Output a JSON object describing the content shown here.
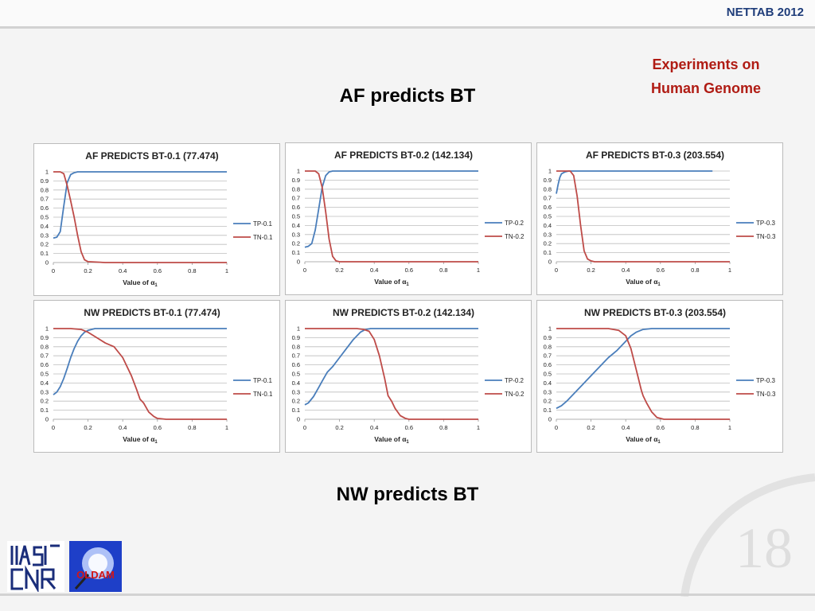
{
  "header": {
    "conference": "NETTAB 2012"
  },
  "subtitle": {
    "line1": "Experiments on",
    "line2": "Human Genome"
  },
  "headings": {
    "af": "AF predicts BT",
    "nw": "NW predicts BT"
  },
  "page_number": "18",
  "logos": {
    "iasi": "IASI CNR",
    "oldam": "OLDAM"
  },
  "colors": {
    "tp": "#4a7ebb",
    "tn": "#be4b48",
    "title": "#b01c14",
    "header": "#1f3d7a"
  },
  "chart_data": [
    {
      "type": "line",
      "title": "AF PREDICTS BT-0.1 (77.474)",
      "xlabel": "Value of α1",
      "ylim": [
        0,
        1
      ],
      "xlim": [
        0,
        1
      ],
      "x_ticks": [
        "0",
        "0.2",
        "0.4",
        "0.6",
        "0.8",
        "1"
      ],
      "y_ticks": [
        "0",
        "0.1",
        "0.2",
        "0.3",
        "0.4",
        "0.5",
        "0.6",
        "0.7",
        "0.8",
        "0.9",
        "1"
      ],
      "legend": "right",
      "grid": true,
      "series": [
        {
          "name": "TP-0.1",
          "x": [
            0,
            0.02,
            0.04,
            0.06,
            0.08,
            0.1,
            0.12,
            0.14,
            0.2,
            0.4,
            0.6,
            0.8,
            1.0
          ],
          "y": [
            0.27,
            0.28,
            0.34,
            0.62,
            0.88,
            0.97,
            0.99,
            1,
            1,
            1,
            1,
            1,
            1
          ]
        },
        {
          "name": "TN-0.1",
          "x": [
            0,
            0.04,
            0.06,
            0.08,
            0.1,
            0.12,
            0.14,
            0.16,
            0.18,
            0.2,
            0.3,
            0.4,
            0.6,
            0.8,
            1.0
          ],
          "y": [
            1,
            1,
            0.98,
            0.85,
            0.68,
            0.5,
            0.3,
            0.12,
            0.03,
            0.01,
            0,
            0,
            0,
            0,
            0
          ]
        }
      ]
    },
    {
      "type": "line",
      "title": "AF PREDICTS BT-0.2 (142.134)",
      "xlabel": "Value of α1",
      "ylim": [
        0,
        1
      ],
      "xlim": [
        0,
        1
      ],
      "x_ticks": [
        "0",
        "0.2",
        "0.4",
        "0.6",
        "0.8",
        "1"
      ],
      "y_ticks": [
        "0",
        "0.1",
        "0.2",
        "0.3",
        "0.4",
        "0.5",
        "0.6",
        "0.7",
        "0.8",
        "0.9",
        "1"
      ],
      "legend": "right",
      "grid": true,
      "series": [
        {
          "name": "TP-0.2",
          "x": [
            0,
            0.02,
            0.04,
            0.06,
            0.08,
            0.1,
            0.12,
            0.14,
            0.16,
            0.2,
            0.4,
            0.6,
            0.8,
            1.0
          ],
          "y": [
            0.16,
            0.17,
            0.2,
            0.35,
            0.58,
            0.82,
            0.95,
            0.99,
            1,
            1,
            1,
            1,
            1,
            1
          ]
        },
        {
          "name": "TN-0.2",
          "x": [
            0,
            0.06,
            0.08,
            0.1,
            0.12,
            0.14,
            0.16,
            0.18,
            0.2,
            0.3,
            0.4,
            0.6,
            0.8,
            1.0
          ],
          "y": [
            1,
            1,
            0.97,
            0.82,
            0.55,
            0.25,
            0.06,
            0.01,
            0,
            0,
            0,
            0,
            0,
            0
          ]
        }
      ]
    },
    {
      "type": "line",
      "title": "AF PREDICTS BT-0.3 (203.554)",
      "xlabel": "Value of α1",
      "ylim": [
        0,
        1
      ],
      "xlim": [
        0,
        1
      ],
      "x_ticks": [
        "0",
        "0.2",
        "0.4",
        "0.6",
        "0.8",
        "1"
      ],
      "y_ticks": [
        "0",
        "0.1",
        "0.2",
        "0.3",
        "0.4",
        "0.5",
        "0.6",
        "0.7",
        "0.8",
        "0.9",
        "1"
      ],
      "legend": "right",
      "grid": true,
      "series": [
        {
          "name": "TP-0.3",
          "x": [
            0,
            0.01,
            0.02,
            0.03,
            0.05,
            0.07,
            0.1,
            0.2,
            0.4,
            0.6,
            0.8,
            0.9
          ],
          "y": [
            0.75,
            0.85,
            0.93,
            0.97,
            0.99,
            1,
            1,
            1,
            1,
            1,
            1,
            1
          ]
        },
        {
          "name": "TN-0.3",
          "x": [
            0,
            0.08,
            0.1,
            0.12,
            0.14,
            0.16,
            0.18,
            0.2,
            0.22,
            0.3,
            0.4,
            0.6,
            0.8,
            1.0
          ],
          "y": [
            1,
            1,
            0.95,
            0.72,
            0.4,
            0.12,
            0.03,
            0.01,
            0,
            0,
            0,
            0,
            0,
            0
          ]
        }
      ]
    },
    {
      "type": "line",
      "title": "NW PREDICTS BT-0.1 (77.474)",
      "xlabel": "Value of α1",
      "ylim": [
        0,
        1
      ],
      "xlim": [
        0,
        1
      ],
      "x_ticks": [
        "0",
        "0.2",
        "0.4",
        "0.6",
        "0.8",
        "1"
      ],
      "y_ticks": [
        "0",
        "0.1",
        "0.2",
        "0.3",
        "0.4",
        "0.5",
        "0.6",
        "0.7",
        "0.8",
        "0.9",
        "1"
      ],
      "legend": "right",
      "grid": true,
      "series": [
        {
          "name": "TP-0.1",
          "x": [
            0,
            0.02,
            0.04,
            0.06,
            0.08,
            0.1,
            0.12,
            0.14,
            0.16,
            0.18,
            0.2,
            0.22,
            0.24,
            0.26,
            0.3,
            0.4,
            0.6,
            0.8,
            1.0
          ],
          "y": [
            0.27,
            0.3,
            0.36,
            0.45,
            0.56,
            0.68,
            0.78,
            0.86,
            0.92,
            0.96,
            0.98,
            0.99,
            1,
            1,
            1,
            1,
            1,
            1,
            1
          ]
        },
        {
          "name": "TN-0.1",
          "x": [
            0,
            0.1,
            0.16,
            0.2,
            0.25,
            0.3,
            0.35,
            0.4,
            0.45,
            0.48,
            0.5,
            0.52,
            0.55,
            0.58,
            0.6,
            0.65,
            0.7,
            0.8,
            1.0
          ],
          "y": [
            1,
            1,
            0.99,
            0.96,
            0.9,
            0.84,
            0.8,
            0.68,
            0.48,
            0.33,
            0.22,
            0.18,
            0.08,
            0.03,
            0.01,
            0,
            0,
            0,
            0
          ]
        }
      ]
    },
    {
      "type": "line",
      "title": "NW PREDICTS BT-0.2 (142.134)",
      "xlabel": "Value of α1",
      "ylim": [
        0,
        1
      ],
      "xlim": [
        0,
        1
      ],
      "x_ticks": [
        "0",
        "0.2",
        "0.4",
        "0.6",
        "0.8",
        "1"
      ],
      "y_ticks": [
        "0",
        "0.1",
        "0.2",
        "0.3",
        "0.4",
        "0.5",
        "0.6",
        "0.7",
        "0.8",
        "0.9",
        "1"
      ],
      "legend": "right",
      "grid": true,
      "series": [
        {
          "name": "TP-0.2",
          "x": [
            0,
            0.02,
            0.05,
            0.08,
            0.1,
            0.13,
            0.16,
            0.2,
            0.24,
            0.28,
            0.32,
            0.35,
            0.38,
            0.4,
            0.5,
            0.6,
            0.8,
            1.0
          ],
          "y": [
            0.16,
            0.18,
            0.25,
            0.35,
            0.42,
            0.52,
            0.58,
            0.68,
            0.78,
            0.88,
            0.96,
            0.99,
            1,
            1,
            1,
            1,
            1,
            1
          ]
        },
        {
          "name": "TN-0.2",
          "x": [
            0,
            0.2,
            0.3,
            0.34,
            0.37,
            0.4,
            0.43,
            0.46,
            0.48,
            0.5,
            0.52,
            0.55,
            0.58,
            0.6,
            0.7,
            0.8,
            1.0
          ],
          "y": [
            1,
            1,
            1,
            0.99,
            0.97,
            0.88,
            0.7,
            0.45,
            0.26,
            0.2,
            0.12,
            0.04,
            0.01,
            0,
            0,
            0,
            0
          ]
        }
      ]
    },
    {
      "type": "line",
      "title": "NW PREDICTS BT-0.3 (203.554)",
      "xlabel": "Value of α1",
      "ylim": [
        0,
        1
      ],
      "xlim": [
        0,
        1
      ],
      "x_ticks": [
        "0",
        "0.2",
        "0.4",
        "0.6",
        "0.8",
        "1"
      ],
      "y_ticks": [
        "0",
        "0.1",
        "0.2",
        "0.3",
        "0.4",
        "0.5",
        "0.6",
        "0.7",
        "0.8",
        "0.9",
        "1"
      ],
      "legend": "right",
      "grid": true,
      "series": [
        {
          "name": "TP-0.3",
          "x": [
            0,
            0.03,
            0.06,
            0.1,
            0.15,
            0.2,
            0.25,
            0.3,
            0.35,
            0.4,
            0.43,
            0.46,
            0.5,
            0.55,
            0.6,
            0.8,
            1.0
          ],
          "y": [
            0.12,
            0.15,
            0.2,
            0.28,
            0.38,
            0.48,
            0.58,
            0.68,
            0.76,
            0.86,
            0.92,
            0.96,
            0.99,
            1,
            1,
            1,
            1
          ]
        },
        {
          "name": "TN-0.3",
          "x": [
            0,
            0.2,
            0.3,
            0.36,
            0.4,
            0.43,
            0.46,
            0.49,
            0.5,
            0.52,
            0.55,
            0.58,
            0.62,
            0.7,
            0.8,
            1.0
          ],
          "y": [
            1,
            1,
            1,
            0.98,
            0.92,
            0.78,
            0.55,
            0.32,
            0.26,
            0.18,
            0.08,
            0.02,
            0,
            0,
            0,
            0
          ]
        }
      ]
    }
  ]
}
